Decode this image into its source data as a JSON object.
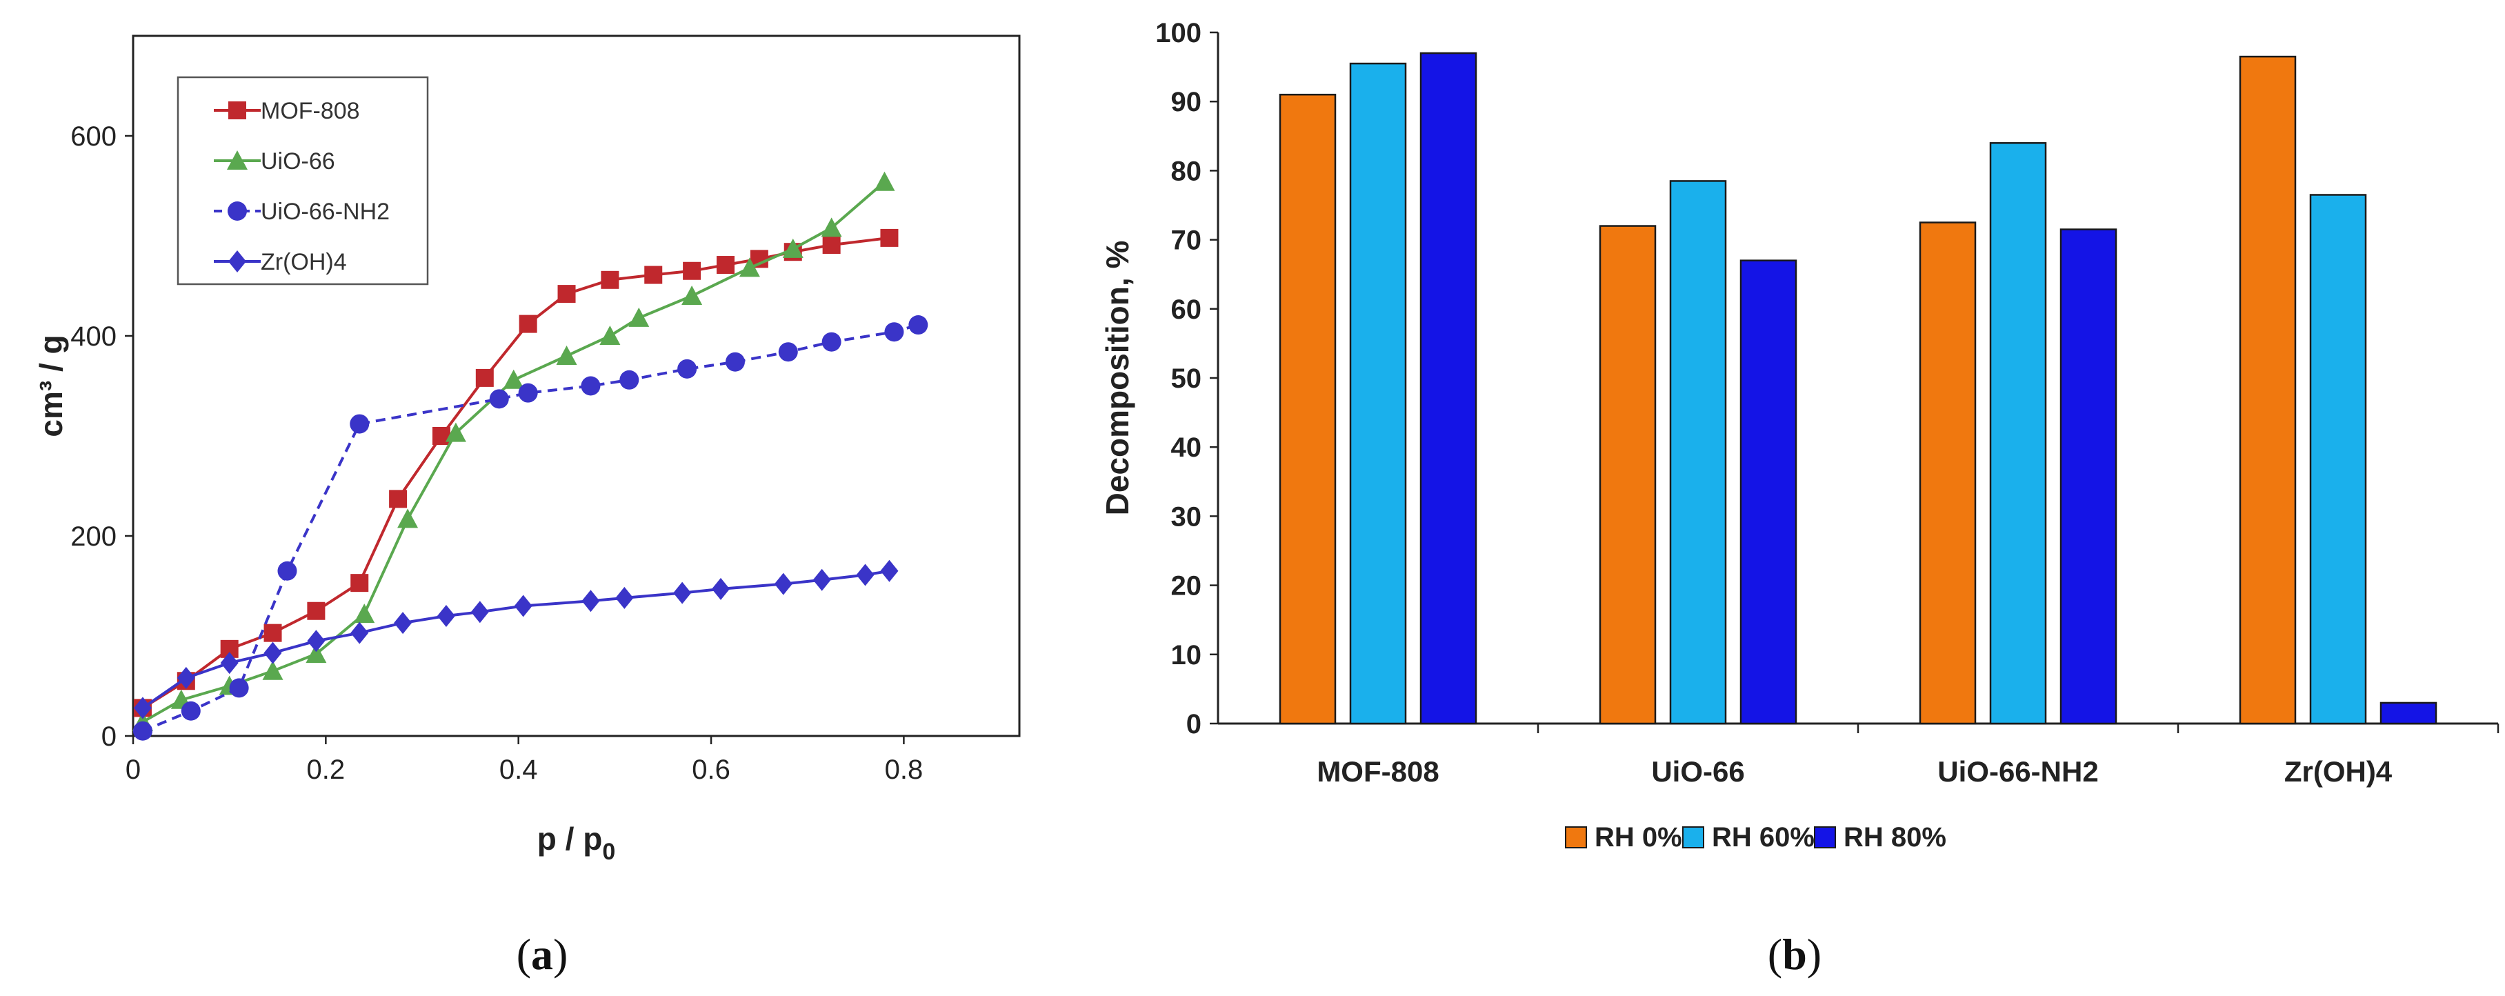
{
  "chart_data": [
    {
      "type": "line",
      "panel_label": "a",
      "xlabel": "p / p",
      "xlabel_sub": "0",
      "ylabel": "cm³ / g",
      "xlim": [
        0,
        0.92
      ],
      "ylim": [
        0,
        700
      ],
      "xticks": [
        0,
        0.2,
        0.4,
        0.6,
        0.8
      ],
      "yticks": [
        0,
        200,
        400,
        600
      ],
      "grid": false,
      "legend": "top-left",
      "series": [
        {
          "name": "MOF-808",
          "color": "#c0282d",
          "marker": "square",
          "dashed": false,
          "x": [
            0.01,
            0.055,
            0.1,
            0.145,
            0.19,
            0.235,
            0.275,
            0.32,
            0.365,
            0.41,
            0.45,
            0.495,
            0.54,
            0.58,
            0.615,
            0.65,
            0.685,
            0.725,
            0.785
          ],
          "y": [
            28,
            55,
            87,
            103,
            125,
            153,
            237,
            300,
            358,
            412,
            442,
            456,
            461,
            465,
            471,
            477,
            484,
            491,
            498
          ]
        },
        {
          "name": "UiO-66",
          "color": "#5aa84f",
          "marker": "triangle",
          "dashed": false,
          "x": [
            0.01,
            0.05,
            0.1,
            0.145,
            0.19,
            0.24,
            0.285,
            0.335,
            0.395,
            0.45,
            0.495,
            0.525,
            0.58,
            0.64,
            0.685,
            0.725,
            0.78
          ],
          "y": [
            14,
            36,
            50,
            65,
            82,
            122,
            217,
            303,
            356,
            380,
            400,
            418,
            440,
            468,
            487,
            508,
            554
          ]
        },
        {
          "name": "UiO-66-NH2",
          "color": "#3a34c8",
          "marker": "circle",
          "dashed": true,
          "x": [
            0.01,
            0.06,
            0.11,
            0.16,
            0.235,
            0.38,
            0.41,
            0.475,
            0.515,
            0.575,
            0.625,
            0.68,
            0.725,
            0.79,
            0.815
          ],
          "y": [
            5,
            25,
            48,
            165,
            312,
            337,
            343,
            350,
            356,
            367,
            374,
            384,
            394,
            404,
            411
          ]
        },
        {
          "name": "Zr(OH)4",
          "color": "#3a34c8",
          "marker": "diamond",
          "dashed": false,
          "x": [
            0.01,
            0.055,
            0.1,
            0.145,
            0.19,
            0.235,
            0.28,
            0.325,
            0.36,
            0.405,
            0.475,
            0.51,
            0.57,
            0.61,
            0.675,
            0.715,
            0.76,
            0.785
          ],
          "y": [
            28,
            58,
            73,
            83,
            95,
            103,
            113,
            120,
            124,
            130,
            135,
            138,
            143,
            147,
            152,
            156,
            161,
            165
          ]
        }
      ]
    },
    {
      "type": "bar",
      "panel_label": "b",
      "ylabel": "Decomposition, %",
      "xlabel": "",
      "ylim": [
        0,
        100
      ],
      "yticks": [
        0,
        10,
        20,
        30,
        40,
        50,
        60,
        70,
        80,
        90,
        100
      ],
      "grid": false,
      "legend": "bottom-center",
      "categories": [
        "MOF-808",
        "UiO-66",
        "UiO-66-NH2",
        "Zr(OH)4"
      ],
      "series": [
        {
          "name": "RH 0%",
          "color": "#f0780f",
          "values": [
            91,
            72,
            72.5,
            96.5
          ]
        },
        {
          "name": "RH 60%",
          "color": "#1ab0ec",
          "values": [
            95.5,
            78.5,
            84,
            76.5
          ]
        },
        {
          "name": "RH 80%",
          "color": "#1414e6",
          "values": [
            97,
            67,
            71.5,
            3
          ]
        }
      ]
    }
  ]
}
